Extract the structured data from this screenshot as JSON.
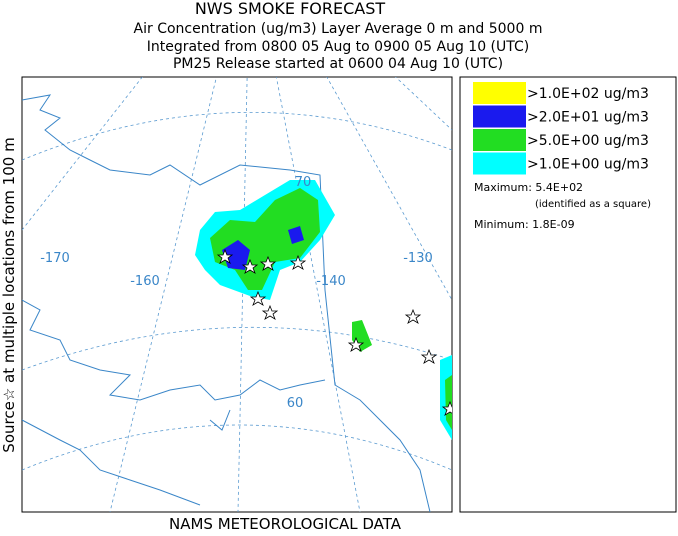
{
  "header": {
    "lines": [
      "NWS SMOKE FORECAST",
      "Air Concentration (ug/m3) Layer Average    0 m and  5000 m",
      "Integrated from 0800 05 Aug to 0900 05 Aug 10 (UTC)",
      "PM25 Release started at 0600 04 Aug 10 (UTC)"
    ]
  },
  "side_label": "Source☆ at multiple locations      from  100 m",
  "footer": "NAMS METEOROLOGICAL DATA",
  "legend": {
    "items": [
      {
        "label": ">1.0E+02 ug/m3",
        "color": "#ffff00"
      },
      {
        "label": ">2.0E+01 ug/m3",
        "color": "#1a1aee"
      },
      {
        "label": ">5.0E+00 ug/m3",
        "color": "#22dd22"
      },
      {
        "label": ">1.0E+00 ug/m3",
        "color": "#00ffff"
      }
    ],
    "maximum": "Maximum: 5.4E+02",
    "maximum_note": "(identified as a square)",
    "minimum": "Minimum: 1.8E-09"
  },
  "map": {
    "labels": [
      "-170",
      "-160",
      "-140",
      "-130",
      "70",
      "60"
    ]
  }
}
